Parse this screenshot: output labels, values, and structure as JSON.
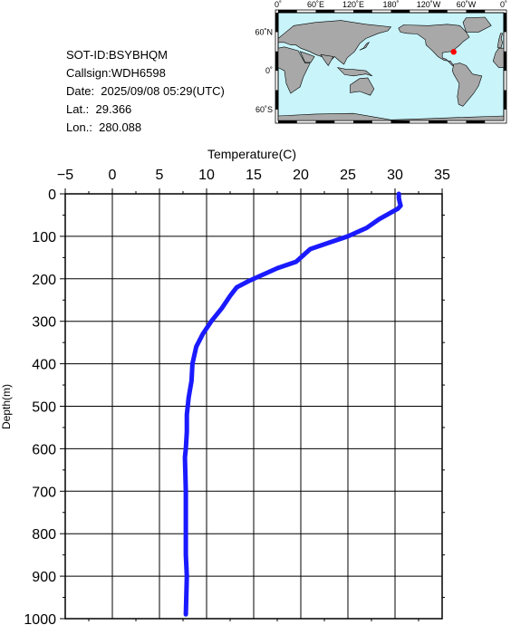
{
  "info": {
    "sot_id": "SOT-ID:BSYBHQM",
    "callsign": "Callsign:WDH6598",
    "date": "Date:  2025/09/08 05:29(UTC)",
    "lat": "Lat.:  29.366",
    "lon": "Lon.:  280.088"
  },
  "map": {
    "top_labels": [
      "0˚",
      "60˚E",
      "120˚E",
      "180˚",
      "120˚W",
      "60˚W",
      "0˚"
    ],
    "left_labels": [
      "60˚N",
      "0˚",
      "60˚S"
    ],
    "marker": {
      "lon": 280.088,
      "lat": 29.366,
      "color": "#ff0000"
    },
    "ocean_color": "#c8f4fa",
    "land_color": "#a8a8a8"
  },
  "chart_data": {
    "type": "line",
    "xlabel": "Temperature(C)",
    "ylabel": "Depth(m)",
    "xlim": [
      -5,
      35
    ],
    "ylim": [
      1000,
      0
    ],
    "x_ticks": [
      "−5",
      "0",
      "5",
      "10",
      "15",
      "20",
      "25",
      "30",
      "35"
    ],
    "y_ticks": [
      "0",
      "100",
      "200",
      "300",
      "400",
      "500",
      "600",
      "700",
      "800",
      "900",
      "1000"
    ],
    "grid": true,
    "series": [
      {
        "color": "#1a1aff",
        "points": [
          [
            30.4,
            0
          ],
          [
            30.4,
            10
          ],
          [
            30.5,
            20
          ],
          [
            30.6,
            28
          ],
          [
            30.3,
            35
          ],
          [
            29.5,
            45
          ],
          [
            28.3,
            60
          ],
          [
            27.0,
            80
          ],
          [
            25.0,
            100
          ],
          [
            23.0,
            115
          ],
          [
            21.0,
            130
          ],
          [
            19.5,
            160
          ],
          [
            17.5,
            175
          ],
          [
            16.0,
            190
          ],
          [
            14.5,
            205
          ],
          [
            13.2,
            220
          ],
          [
            12.5,
            240
          ],
          [
            11.6,
            270
          ],
          [
            10.5,
            300
          ],
          [
            9.6,
            330
          ],
          [
            8.9,
            360
          ],
          [
            8.5,
            400
          ],
          [
            8.4,
            440
          ],
          [
            8.1,
            480
          ],
          [
            7.9,
            520
          ],
          [
            7.9,
            560
          ],
          [
            7.8,
            600
          ],
          [
            7.7,
            620
          ],
          [
            7.8,
            700
          ],
          [
            7.8,
            800
          ],
          [
            7.8,
            850
          ],
          [
            7.9,
            900
          ],
          [
            7.8,
            990
          ]
        ]
      }
    ]
  }
}
